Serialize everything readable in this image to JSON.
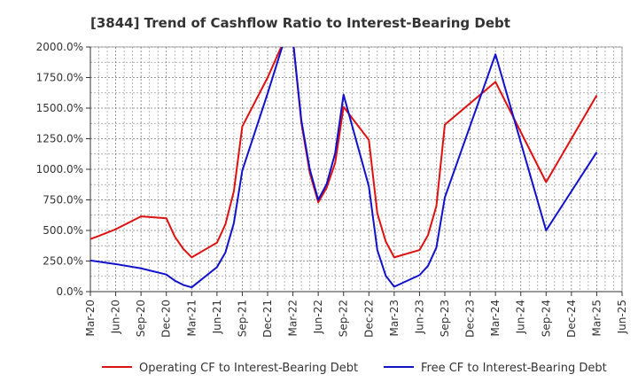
{
  "chart_data": {
    "type": "line",
    "title": "[3844]  Trend of Cashflow Ratio to Interest-Bearing Debt",
    "xlabel": "",
    "ylabel": "",
    "x_ticks": [
      "Mar-20",
      "Jun-20",
      "Sep-20",
      "Dec-20",
      "Mar-21",
      "Jun-21",
      "Sep-21",
      "Dec-21",
      "Mar-22",
      "Jun-22",
      "Sep-22",
      "Dec-22",
      "Mar-23",
      "Jun-23",
      "Sep-23",
      "Dec-23",
      "Mar-24",
      "Jun-24",
      "Sep-24",
      "Dec-24",
      "Mar-25",
      "Jun-25"
    ],
    "y_ticks": [
      "0.0%",
      "250.0%",
      "500.0%",
      "750.0%",
      "1000.0%",
      "1250.0%",
      "1500.0%",
      "1750.0%",
      "2000.0%"
    ],
    "ylim": [
      0,
      2000
    ],
    "y_unit": "%",
    "grid": true,
    "legend_position": "bottom",
    "series": [
      {
        "name": "Operating CF to Interest-Bearing Debt",
        "color": "#dd1111",
        "points": [
          [
            "Mar-20",
            430
          ],
          [
            "Apr-20",
            455
          ],
          [
            "Jun-20",
            510
          ],
          [
            "Sep-20",
            615
          ],
          [
            "Dec-20",
            600
          ],
          [
            "Jan-21",
            450
          ],
          [
            "Feb-21",
            350
          ],
          [
            "Mar-21",
            280
          ],
          [
            "May-21",
            360
          ],
          [
            "Jun-21",
            400
          ],
          [
            "Jul-21",
            550
          ],
          [
            "Aug-21",
            820
          ],
          [
            "Sep-21",
            1350
          ],
          [
            "Dec-21",
            1750
          ],
          [
            "Feb-22",
            2060
          ],
          [
            "Mar-22",
            2060
          ],
          [
            "Apr-22",
            1380
          ],
          [
            "May-22",
            970
          ],
          [
            "Jun-22",
            730
          ],
          [
            "Jul-22",
            850
          ],
          [
            "Aug-22",
            1050
          ],
          [
            "Sep-22",
            1510
          ],
          [
            "Dec-22",
            1240
          ],
          [
            "Jan-23",
            640
          ],
          [
            "Feb-23",
            410
          ],
          [
            "Mar-23",
            280
          ],
          [
            "Jun-23",
            340
          ],
          [
            "Jul-23",
            460
          ],
          [
            "Aug-23",
            700
          ],
          [
            "Sep-23",
            1365
          ],
          [
            "Mar-24",
            1715
          ],
          [
            "Sep-24",
            895
          ],
          [
            "Mar-25",
            1605
          ]
        ]
      },
      {
        "name": "Free CF to Interest-Bearing Debt",
        "color": "#1111cc",
        "points": [
          [
            "Mar-20",
            255
          ],
          [
            "Jun-20",
            225
          ],
          [
            "Sep-20",
            190
          ],
          [
            "Dec-20",
            140
          ],
          [
            "Jan-21",
            90
          ],
          [
            "Feb-21",
            55
          ],
          [
            "Mar-21",
            35
          ],
          [
            "Jun-21",
            200
          ],
          [
            "Jul-21",
            320
          ],
          [
            "Aug-21",
            560
          ],
          [
            "Sep-21",
            990
          ],
          [
            "Dec-21",
            1620
          ],
          [
            "Feb-22",
            2060
          ],
          [
            "Mar-22",
            2060
          ],
          [
            "Apr-22",
            1400
          ],
          [
            "May-22",
            1000
          ],
          [
            "Jun-22",
            750
          ],
          [
            "Jul-22",
            880
          ],
          [
            "Aug-22",
            1130
          ],
          [
            "Sep-22",
            1610
          ],
          [
            "Dec-22",
            860
          ],
          [
            "Jan-23",
            340
          ],
          [
            "Feb-23",
            130
          ],
          [
            "Mar-23",
            40
          ],
          [
            "Jun-23",
            135
          ],
          [
            "Jul-23",
            210
          ],
          [
            "Aug-23",
            360
          ],
          [
            "Sep-23",
            770
          ],
          [
            "Mar-24",
            1940
          ],
          [
            "Sep-24",
            500
          ],
          [
            "Mar-25",
            1140
          ]
        ]
      }
    ]
  }
}
